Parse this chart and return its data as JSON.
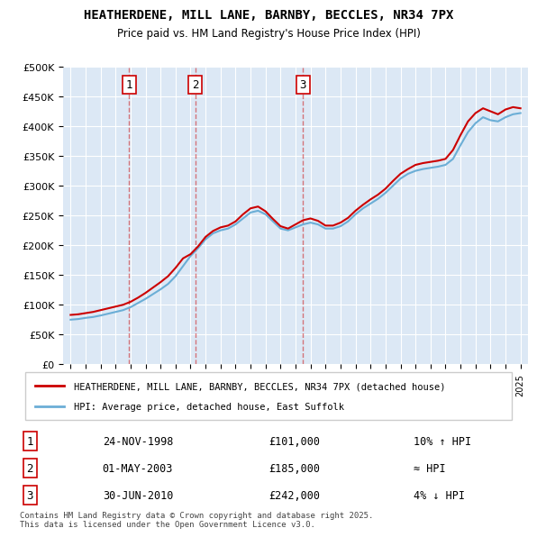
{
  "title": "HEATHERDENE, MILL LANE, BARNBY, BECCLES, NR34 7PX",
  "subtitle": "Price paid vs. HM Land Registry's House Price Index (HPI)",
  "legend_line1": "HEATHERDENE, MILL LANE, BARNBY, BECCLES, NR34 7PX (detached house)",
  "legend_line2": "HPI: Average price, detached house, East Suffolk",
  "transactions": [
    {
      "num": 1,
      "date": "24-NOV-1998",
      "price": 101000,
      "hpi_note": "10% ↑ HPI",
      "x_year": 1998.9
    },
    {
      "num": 2,
      "date": "01-MAY-2003",
      "price": 185000,
      "hpi_note": "≈ HPI",
      "x_year": 2003.33
    },
    {
      "num": 3,
      "date": "30-JUN-2010",
      "price": 242000,
      "hpi_note": "4% ↓ HPI",
      "x_year": 2010.5
    }
  ],
  "footer": "Contains HM Land Registry data © Crown copyright and database right 2025.\nThis data is licensed under the Open Government Licence v3.0.",
  "bg_color": "#f0f4f8",
  "plot_bg_color": "#dce8f5",
  "grid_color": "#ffffff",
  "red_color": "#cc0000",
  "blue_color": "#6baed6",
  "vline_color": "#cc000066",
  "ylim": [
    0,
    500000
  ],
  "xlim_start": 1994.5,
  "xlim_end": 2025.5
}
